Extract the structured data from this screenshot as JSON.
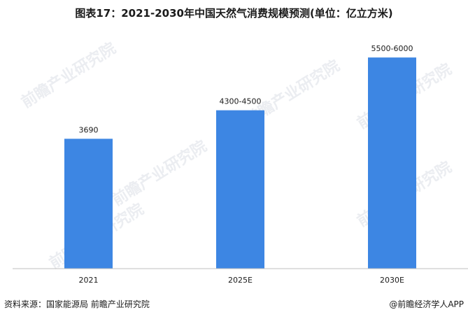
{
  "title": "图表17：2021-2030年中国天然气消费规模预测(单位：亿立方米)",
  "footer": {
    "source": "资料来源：国家能源局 前瞻产业研究院",
    "brand": "@前瞻经济学人APP"
  },
  "watermark": "前瞻产业研究院",
  "colors": {
    "bar": "#3d86e3",
    "axis": "#bfbfbf",
    "text": "#1a1a1a"
  },
  "chart_data": {
    "type": "bar",
    "categories": [
      "2021",
      "2025E",
      "2030E"
    ],
    "values": [
      3690,
      4500,
      6000
    ],
    "data_labels": [
      "3690",
      "4300-4500",
      "5500-6000"
    ],
    "title": "图表17：2021-2030年中国天然气消费规模预测(单位：亿立方米)",
    "xlabel": "",
    "ylabel": "",
    "ylim": [
      0,
      6600
    ],
    "grid": false,
    "legend": "none"
  }
}
